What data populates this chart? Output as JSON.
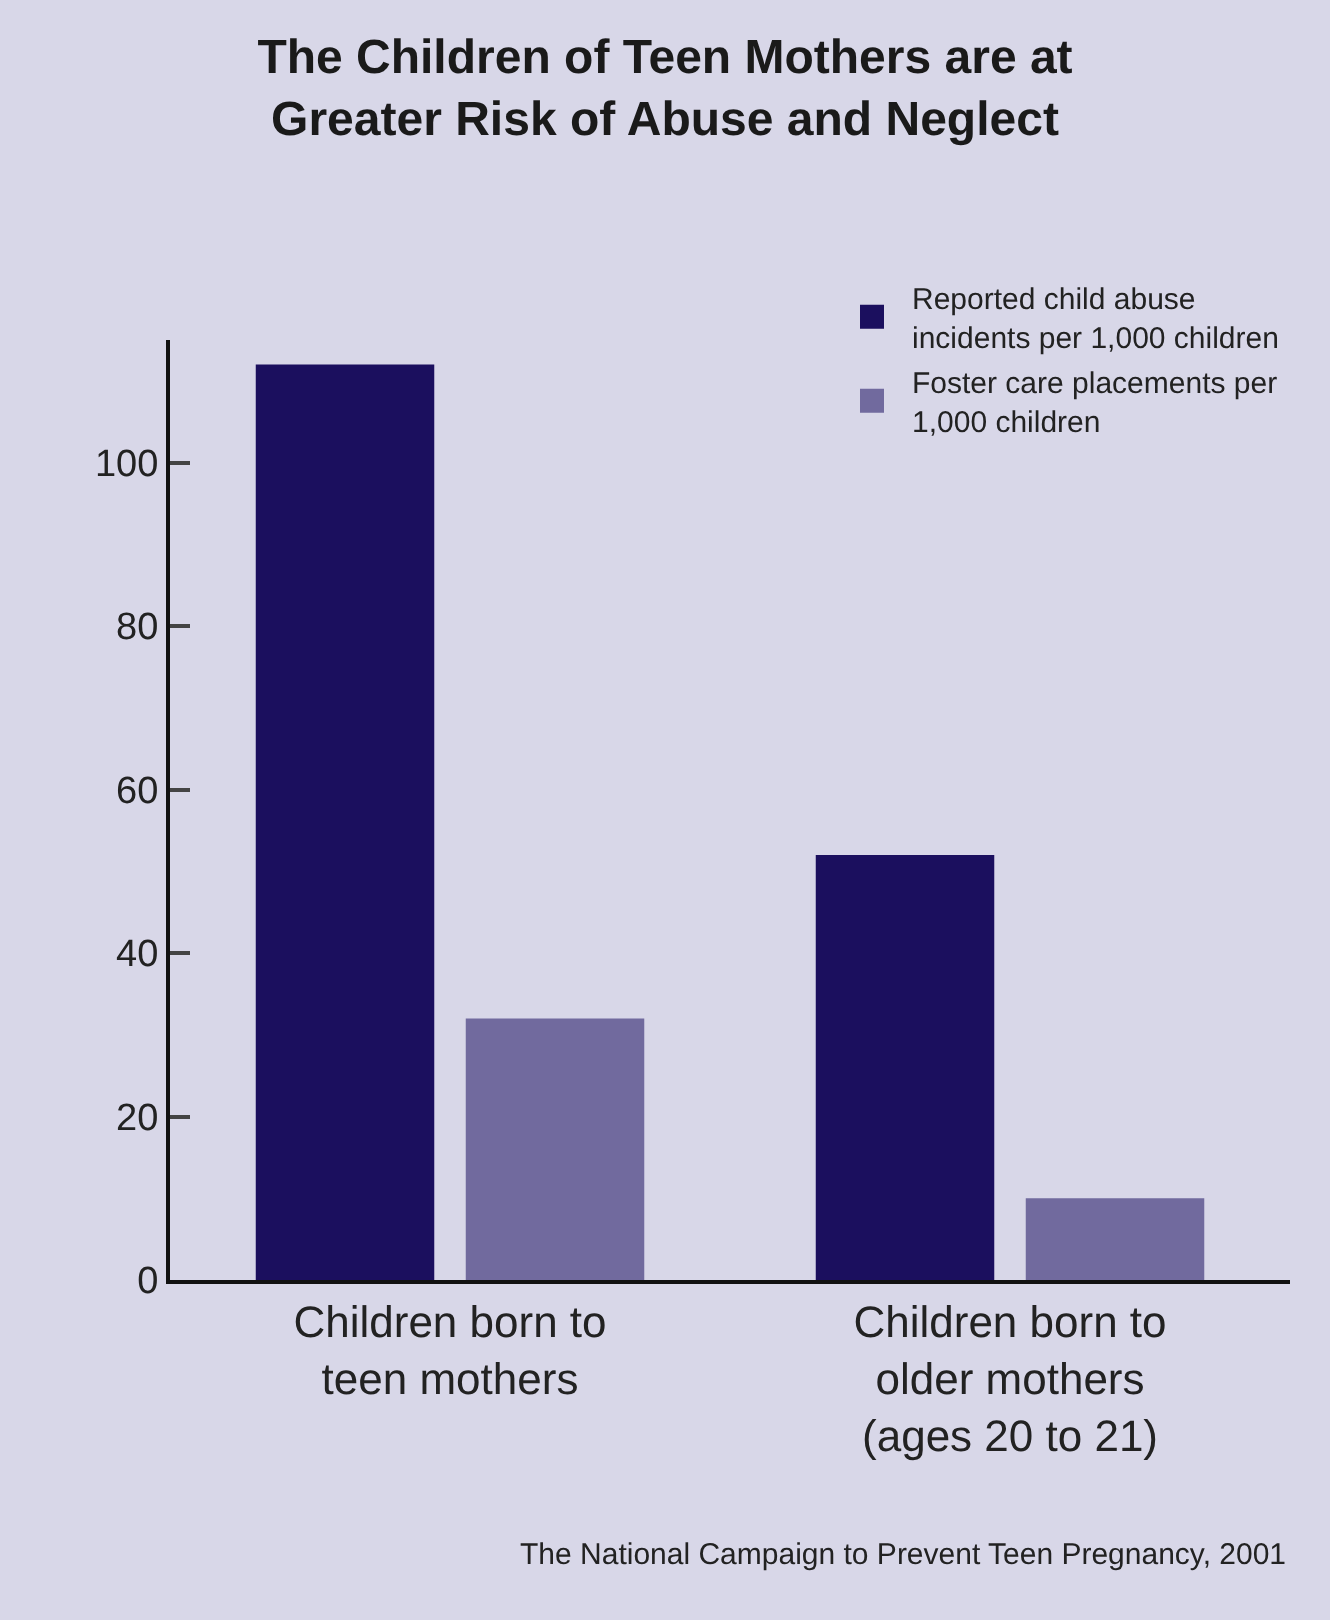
{
  "chart_data": {
    "type": "bar",
    "title": "The Children of Teen Mothers are at\nGreater Risk of Abuse and Neglect",
    "categories": [
      "Children born to\nteen mothers",
      "Children born to\nolder mothers\n(ages 20 to 21)"
    ],
    "series": [
      {
        "name": "Reported child abuse\nincidents per 1,000 children",
        "color": "#1b0f5e",
        "values": [
          112,
          52
        ]
      },
      {
        "name": "Foster care placements per\n1,000 children",
        "color": "#716a9e",
        "values": [
          32,
          10
        ]
      }
    ],
    "ylim": [
      0,
      115
    ],
    "yticks": [
      0,
      20,
      40,
      60,
      80,
      100
    ],
    "grid": false,
    "legend": "top right",
    "annotations": [
      "The National Campaign to Prevent Teen Pregnancy, 2001"
    ]
  }
}
